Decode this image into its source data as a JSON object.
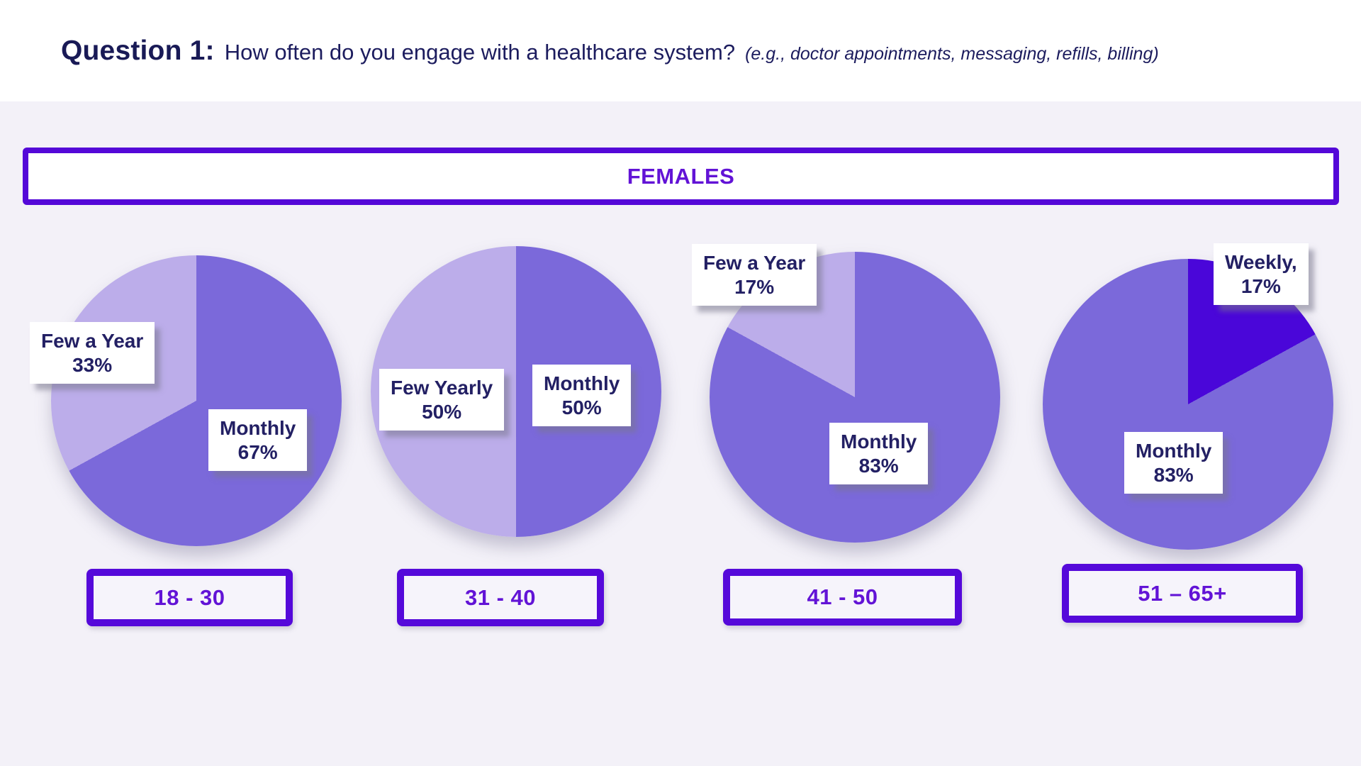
{
  "title": {
    "prefix": "Question 1:",
    "question": "How often do you engage with a healthcare system?",
    "note": "(e.g., doctor appointments, messaging, refills, billing)"
  },
  "group_header": "FEMALES",
  "colors": {
    "monthly_purple": "#7b69da",
    "few_light_purple": "#bcadea",
    "weekly_dark_violet": "#4a06d9",
    "accent_border_purple": "#5408d8",
    "accent_text_purple": "#6213d6",
    "label_navy": "#232064",
    "title_navy": "#191a56",
    "chart_area_bg": "#f3f1f8",
    "title_strip_bg": "#ffffff"
  },
  "chart_data": [
    {
      "type": "pie",
      "title": "18 - 30",
      "age_group": "18 - 30",
      "slices": [
        {
          "label": "Monthly",
          "display": "Monthly",
          "value": 67,
          "pct_label": "67%",
          "color": "#7b69da"
        },
        {
          "label": "Few a Year",
          "display": "Few a Year",
          "value": 33,
          "pct_label": "33%",
          "color": "#bcadea"
        }
      ]
    },
    {
      "type": "pie",
      "title": "31 - 40",
      "age_group": "31 - 40",
      "slices": [
        {
          "label": "Monthly",
          "display": "Monthly",
          "value": 50,
          "pct_label": "50%",
          "color": "#7b69da"
        },
        {
          "label": "Few Yearly",
          "display": "Few Yearly",
          "value": 50,
          "pct_label": "50%",
          "color": "#bcadea"
        }
      ]
    },
    {
      "type": "pie",
      "title": "41 - 50",
      "age_group": "41 - 50",
      "slices": [
        {
          "label": "Monthly",
          "display": "Monthly",
          "value": 83,
          "pct_label": "83%",
          "color": "#7b69da"
        },
        {
          "label": "Few a Year",
          "display": "Few a Year",
          "value": 17,
          "pct_label": "17%",
          "color": "#bcadea"
        }
      ]
    },
    {
      "type": "pie",
      "title": "51 – 65+",
      "age_group": "51 – 65+",
      "slices": [
        {
          "label": "Weekly",
          "display": "Weekly,",
          "value": 17,
          "pct_label": "17%",
          "color": "#4a06d9"
        },
        {
          "label": "Monthly",
          "display": "Monthly",
          "value": 83,
          "pct_label": "83%",
          "color": "#7b69da"
        }
      ]
    }
  ]
}
